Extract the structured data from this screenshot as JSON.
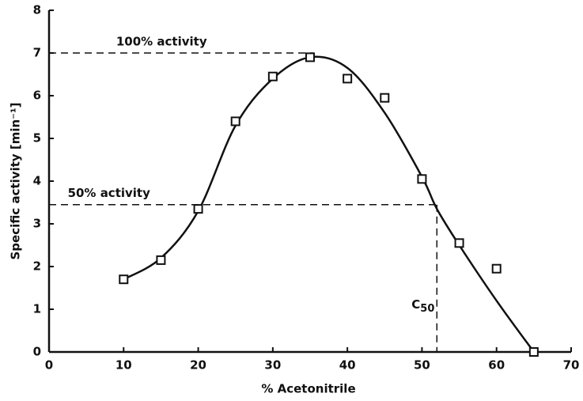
{
  "chart_data": {
    "type": "scatter",
    "x_label": "% Acetonitrile",
    "y_label": "Specific activity [min⁻¹]",
    "x": [
      10,
      15,
      20,
      25,
      30,
      35,
      40,
      45,
      50,
      55,
      60,
      65
    ],
    "values": [
      1.7,
      2.15,
      3.35,
      5.4,
      6.45,
      6.9,
      6.4,
      5.95,
      4.05,
      2.55,
      1.95,
      0
    ],
    "color": "#111111",
    "curve": {
      "x": [
        10,
        15,
        20,
        25,
        30,
        35,
        40,
        45,
        50,
        52,
        55,
        60,
        65
      ],
      "values": [
        1.7,
        2.2,
        3.3,
        5.3,
        6.4,
        6.9,
        6.65,
        5.6,
        4.1,
        3.35,
        2.5,
        1.2,
        0
      ]
    },
    "reference_lines": [
      {
        "label": "100% activity",
        "y": 7,
        "x_end": 35.5
      },
      {
        "label": "50% activity",
        "y": 3.45,
        "x_end": 52
      }
    ],
    "c50": {
      "base": "C",
      "sub": "50",
      "x": 52
    },
    "xlim": [
      0,
      70
    ],
    "xticks": [
      0,
      10,
      20,
      30,
      40,
      50,
      60,
      70
    ],
    "ylim": [
      0,
      8
    ],
    "yticks": [
      0,
      1,
      2,
      3,
      4,
      5,
      6,
      7,
      8
    ]
  }
}
